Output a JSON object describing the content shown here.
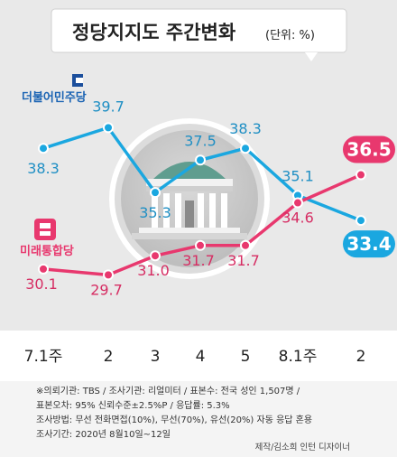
{
  "title": "정당지지도 주간변화",
  "unit_label": "(단위: %)",
  "chart_data": {
    "type": "line",
    "categories": [
      "7.1주",
      "2",
      "3",
      "4",
      "5",
      "8.1주",
      "2"
    ],
    "series": [
      {
        "name": "더불어민주당",
        "color": "#1aa7e0",
        "values": [
          38.3,
          39.7,
          35.3,
          37.5,
          38.3,
          35.1,
          33.4
        ]
      },
      {
        "name": "미래통합당",
        "color": "#e8386e",
        "values": [
          30.1,
          29.7,
          31.0,
          31.7,
          31.7,
          34.6,
          36.5
        ]
      }
    ],
    "grid": false,
    "legend": "inline labels"
  },
  "footer": {
    "lines": [
      "※의뢰기관: TBS / 조사기관: 리얼미터 / 표본수: 전국 성인 1,507명 /",
      "표본오차: 95% 신뢰수준±2.5%P / 응답률: 5.3%",
      "조사방법: 무선 전화면접(10%), 무선(70%), 유선(20%) 자동 응답 혼용",
      "조사기간: 2020년 8월10일~12일"
    ],
    "credit": "제작/김소희 인턴 디자이너"
  },
  "colors": {
    "background": "#e9e9e9",
    "dem": "#1aa7e0",
    "upp": "#e8386e",
    "footer_bg": "#f4f4f4"
  }
}
